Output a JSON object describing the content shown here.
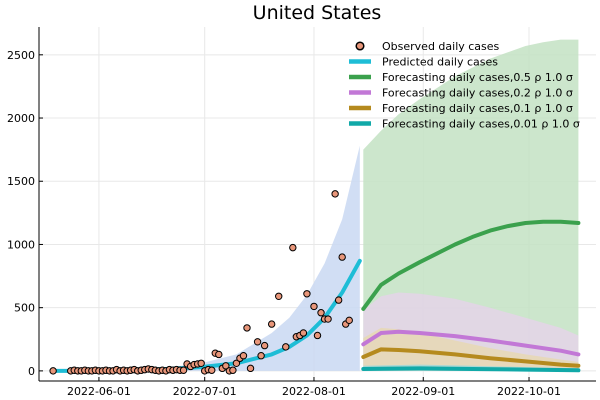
{
  "chart_data": {
    "type": "line",
    "title": "United States",
    "xlabel": "",
    "ylabel": "",
    "xlim": [
      "2022-05-15",
      "2022-10-20"
    ],
    "ylim": [
      -80,
      2720
    ],
    "grid": true,
    "legend_position": "top-right",
    "x_ticks": [
      "2022-06-01",
      "2022-07-01",
      "2022-08-01",
      "2022-09-01",
      "2022-10-01"
    ],
    "y_ticks": [
      0,
      500,
      1000,
      1500,
      2000,
      2500
    ],
    "observed": {
      "name": "Observed daily cases",
      "color": "#e8967a",
      "x": [
        "2022-05-19",
        "2022-05-24",
        "2022-05-25",
        "2022-05-26",
        "2022-05-27",
        "2022-05-28",
        "2022-05-29",
        "2022-05-30",
        "2022-05-31",
        "2022-06-01",
        "2022-06-02",
        "2022-06-03",
        "2022-06-04",
        "2022-06-05",
        "2022-06-06",
        "2022-06-07",
        "2022-06-08",
        "2022-06-09",
        "2022-06-10",
        "2022-06-11",
        "2022-06-12",
        "2022-06-13",
        "2022-06-14",
        "2022-06-15",
        "2022-06-16",
        "2022-06-17",
        "2022-06-18",
        "2022-06-19",
        "2022-06-20",
        "2022-06-21",
        "2022-06-22",
        "2022-06-23",
        "2022-06-24",
        "2022-06-25",
        "2022-06-26",
        "2022-06-27",
        "2022-06-28",
        "2022-06-29",
        "2022-06-30",
        "2022-07-01",
        "2022-07-02",
        "2022-07-03",
        "2022-07-04",
        "2022-07-05",
        "2022-07-06",
        "2022-07-07",
        "2022-07-08",
        "2022-07-09",
        "2022-07-10",
        "2022-07-11",
        "2022-07-12",
        "2022-07-13",
        "2022-07-14",
        "2022-07-16",
        "2022-07-17",
        "2022-07-18",
        "2022-07-20",
        "2022-07-22",
        "2022-07-24",
        "2022-07-26",
        "2022-07-27",
        "2022-07-28",
        "2022-07-29",
        "2022-07-30",
        "2022-08-01",
        "2022-08-02",
        "2022-08-03",
        "2022-08-04",
        "2022-08-05",
        "2022-08-07",
        "2022-08-08",
        "2022-08-09",
        "2022-08-10",
        "2022-08-11"
      ],
      "y": [
        0,
        0,
        5,
        0,
        0,
        5,
        0,
        0,
        5,
        0,
        0,
        5,
        0,
        0,
        10,
        0,
        5,
        0,
        5,
        10,
        0,
        5,
        10,
        15,
        10,
        5,
        0,
        5,
        0,
        10,
        5,
        10,
        5,
        5,
        55,
        35,
        50,
        55,
        60,
        0,
        10,
        5,
        140,
        130,
        20,
        40,
        0,
        5,
        60,
        100,
        120,
        340,
        20,
        230,
        120,
        200,
        370,
        590,
        190,
        975,
        270,
        280,
        300,
        610,
        510,
        280,
        460,
        410,
        410,
        1400,
        560,
        900,
        370,
        400
      ]
    },
    "predicted": {
      "name": "Predicted daily cases",
      "color": "#1ebdd6",
      "band_color": "#c9d8f2",
      "x": [
        "2022-05-19",
        "2022-06-01",
        "2022-06-10",
        "2022-06-20",
        "2022-06-30",
        "2022-07-10",
        "2022-07-20",
        "2022-07-25",
        "2022-07-30",
        "2022-08-04",
        "2022-08-09",
        "2022-08-14"
      ],
      "y": [
        0,
        0,
        5,
        15,
        30,
        60,
        130,
        190,
        280,
        420,
        620,
        870
      ],
      "lower": [
        0,
        0,
        0,
        0,
        0,
        0,
        0,
        0,
        0,
        0,
        0,
        0
      ],
      "upper": [
        0,
        5,
        10,
        25,
        60,
        130,
        300,
        420,
        600,
        850,
        1200,
        1780
      ]
    },
    "forecasts": [
      {
        "name": "Forecasting daily cases,0.5 ρ 1.0 σ",
        "color": "#3ba14d",
        "band_color": "#c3e2c3",
        "x": [
          "2022-08-15",
          "2022-08-20",
          "2022-08-25",
          "2022-08-31",
          "2022-09-05",
          "2022-09-10",
          "2022-09-15",
          "2022-09-20",
          "2022-09-25",
          "2022-09-30",
          "2022-10-05",
          "2022-10-10",
          "2022-10-15"
        ],
        "y": [
          490,
          680,
          770,
          860,
          930,
          1000,
          1060,
          1110,
          1145,
          1170,
          1180,
          1180,
          1170
        ],
        "lower": [
          0,
          0,
          0,
          0,
          0,
          0,
          0,
          0,
          0,
          0,
          0,
          0,
          0
        ],
        "upper": [
          1750,
          1900,
          2030,
          2150,
          2240,
          2330,
          2400,
          2470,
          2520,
          2570,
          2600,
          2620,
          2620
        ]
      },
      {
        "name": "Forecasting daily cases,0.2 ρ 1.0 σ",
        "color": "#c278d6",
        "band_color": "#e4d4e8",
        "x": [
          "2022-08-15",
          "2022-08-20",
          "2022-08-25",
          "2022-08-31",
          "2022-09-10",
          "2022-09-20",
          "2022-09-30",
          "2022-10-10",
          "2022-10-15"
        ],
        "y": [
          210,
          300,
          310,
          300,
          275,
          240,
          200,
          160,
          130
        ],
        "lower": [
          0,
          0,
          0,
          0,
          0,
          0,
          0,
          0,
          0
        ],
        "upper": [
          480,
          590,
          620,
          610,
          570,
          500,
          420,
          340,
          280
        ]
      },
      {
        "name": "Forecasting daily cases,0.1 ρ 1.0 σ",
        "color": "#b58a1e",
        "band_color": "#e6d8b4",
        "x": [
          "2022-08-15",
          "2022-08-20",
          "2022-08-25",
          "2022-08-31",
          "2022-09-10",
          "2022-09-20",
          "2022-09-30",
          "2022-10-10",
          "2022-10-15"
        ],
        "y": [
          110,
          170,
          165,
          155,
          130,
          100,
          75,
          50,
          40
        ],
        "lower": [
          0,
          0,
          0,
          0,
          0,
          0,
          0,
          0,
          0
        ],
        "upper": [
          260,
          340,
          330,
          300,
          240,
          180,
          130,
          90,
          70
        ]
      },
      {
        "name": "Forecasting daily cases,0.01 ρ 1.0 σ",
        "color": "#11a9a8",
        "band_color": "#9fd8d8",
        "x": [
          "2022-08-15",
          "2022-08-31",
          "2022-09-15",
          "2022-09-30",
          "2022-10-15"
        ],
        "y": [
          15,
          20,
          15,
          10,
          5
        ],
        "lower": [
          0,
          0,
          0,
          0,
          0
        ],
        "upper": [
          40,
          50,
          40,
          30,
          20
        ]
      }
    ]
  }
}
